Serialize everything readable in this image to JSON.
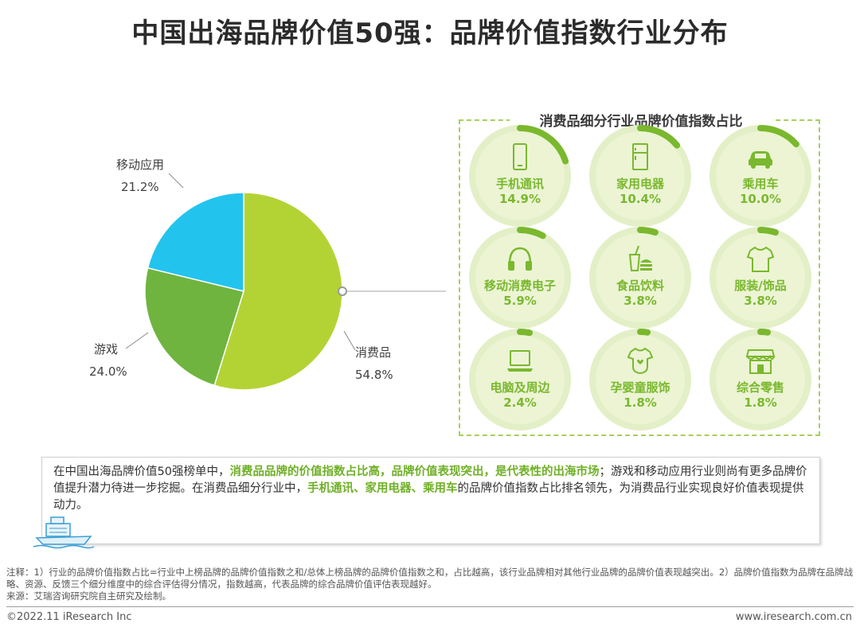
{
  "title": "中国出海品牌价值50强：品牌价值指数行业分布",
  "chart_data": [
    {
      "type": "pie",
      "categories": [
        "消费品",
        "游戏",
        "移动应用"
      ],
      "values": [
        54.8,
        24.0,
        21.2
      ],
      "value_labels": [
        "54.8%",
        "24.0%",
        "21.2%"
      ],
      "colors": [
        "#b3d335",
        "#6fb43f",
        "#22c4ee"
      ]
    },
    {
      "type": "table",
      "title": "消费品细分行业品牌价值指数占比",
      "categories": [
        "手机通讯",
        "家用电器",
        "乘用车",
        "移动消费电子",
        "食品饮料",
        "服装/饰品",
        "电脑及周边",
        "孕婴童服饰",
        "综合零售"
      ],
      "values": [
        14.9,
        10.4,
        10.0,
        5.9,
        3.8,
        3.8,
        2.4,
        1.8,
        1.8
      ],
      "value_labels": [
        "14.9%",
        "10.4%",
        "10.0%",
        "5.9%",
        "3.8%",
        "3.8%",
        "2.4%",
        "1.8%",
        "1.8%"
      ],
      "icons": [
        "phone-icon",
        "fridge-icon",
        "car-icon",
        "headphones-icon",
        "food-icon",
        "shirt-icon",
        "laptop-icon",
        "onesie-icon",
        "store-icon"
      ],
      "accent_color": "#7ab82e"
    }
  ],
  "summary": {
    "p1": "在中国出海品牌价值50强榜单中，",
    "h1": "消费品品牌的价值指数占比高，品牌价值表现突出，是代表性的出海市场",
    "p2": "；游戏和移动应用行业则尚有更多品牌价值提升潜力待进一步挖掘。在消费品细分行业中，",
    "h2": "手机通讯、家用电器、乘用车",
    "p3": "的品牌价值指数占比排名领先，为消费品行业实现良好价值表现提供动力。"
  },
  "notes": {
    "note": "注释：1）行业的品牌价值指数占比=行业中上榜品牌的品牌价值指数之和/总体上榜品牌的品牌价值指数之和，占比越高，该行业品牌相对其他行业品牌的品牌价值表现越突出。2）品牌价值指数为品牌在品牌战略、资源、反馈三个细分维度中的综合评估得分情况，指数越高，代表品牌的综合品牌价值评估表现越好。",
    "source": "来源：艾瑞咨询研究院自主研究及绘制。"
  },
  "footer": {
    "copyright": "©2022.11 iResearch Inc",
    "url": "www.iresearch.com.cn"
  }
}
